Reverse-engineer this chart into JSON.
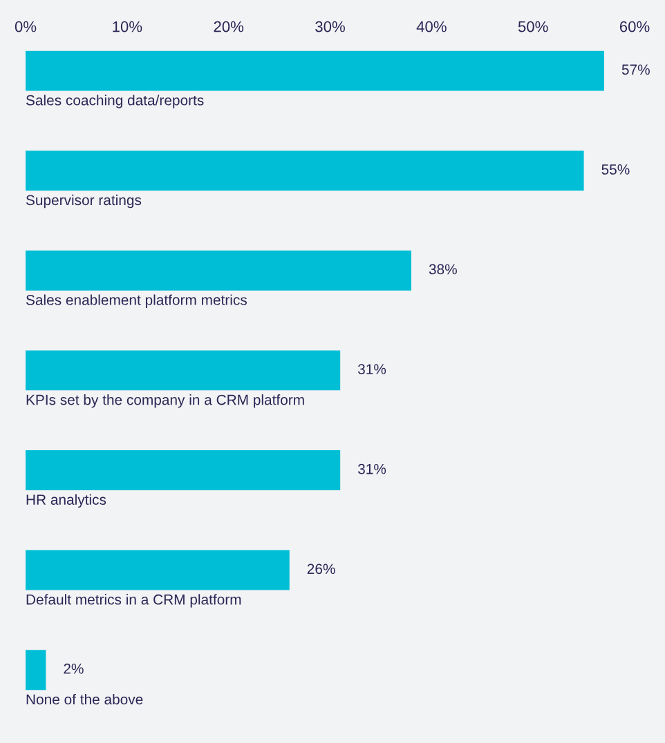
{
  "chart_data": {
    "type": "bar",
    "orientation": "horizontal",
    "categories": [
      "Sales coaching data/reports",
      "Supervisor ratings",
      "Sales enablement platform metrics",
      "KPIs set by the company in a CRM platform",
      "HR analytics",
      "Default metrics in a CRM platform",
      "None of the above"
    ],
    "values": [
      57,
      55,
      38,
      31,
      31,
      26,
      2
    ],
    "value_labels": [
      "57%",
      "55%",
      "38%",
      "31%",
      "31%",
      "26%",
      "2%"
    ],
    "color": "#00bed6",
    "xlim": [
      0,
      60
    ],
    "xticks": [
      {
        "value": 0,
        "label": "0%"
      },
      {
        "value": 10,
        "label": "10%"
      },
      {
        "value": 20,
        "label": "20%"
      },
      {
        "value": 30,
        "label": "30%"
      },
      {
        "value": 40,
        "label": "40%"
      },
      {
        "value": 50,
        "label": "50%"
      },
      {
        "value": 60,
        "label": "60%"
      }
    ],
    "grid": false,
    "legend": false
  }
}
